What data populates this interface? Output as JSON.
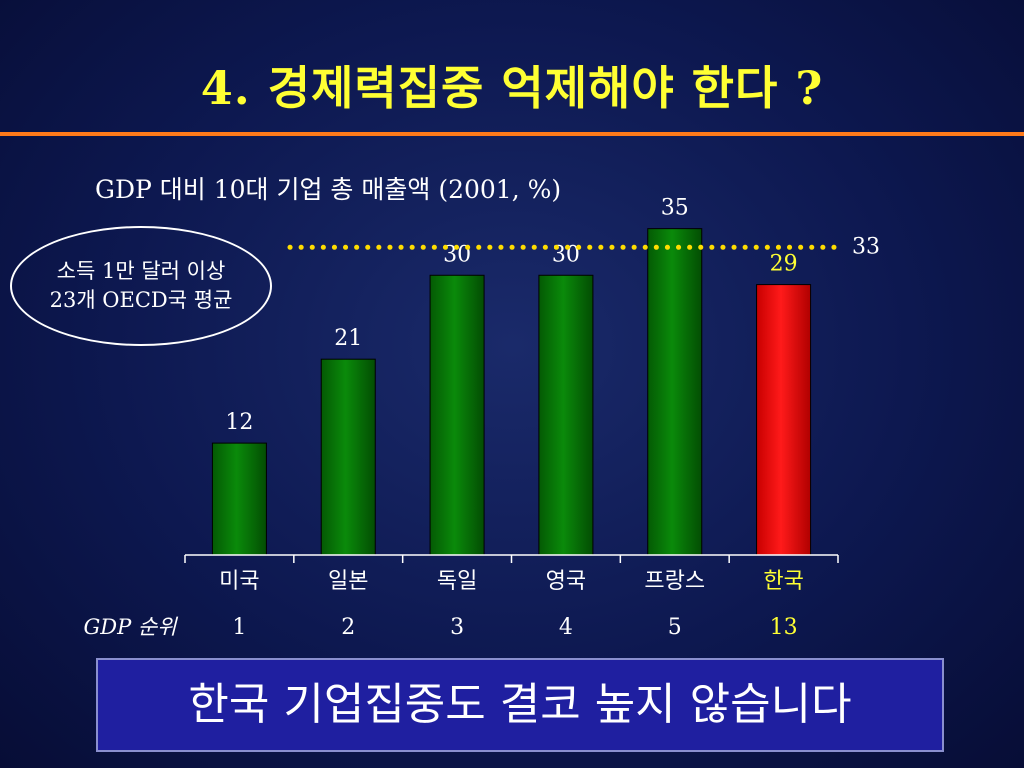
{
  "title": "4. 경제력집중 억제해야 한다 ?",
  "note_bubble": {
    "line1": "소득 1만 달러 이상",
    "line2": "23개 OECD국 평균"
  },
  "rank_label": "GDP 순위",
  "banner": "한국 기업집중도 결코 높지 않습니다",
  "colors": {
    "title": "#ffff33",
    "rule": "#ff7a1a",
    "bar_normal": "#0a8a0a",
    "bar_highlight": "#ff1a1a",
    "highlight_text": "#ffff33",
    "average_line": "#ffdd00"
  },
  "chart_data": {
    "type": "bar",
    "title": "GDP 대비 10대 기업 총 매출액 (2001, %)",
    "categories": [
      "미국",
      "일본",
      "독일",
      "영국",
      "프랑스",
      "한국"
    ],
    "values": [
      12,
      21,
      30,
      30,
      35,
      29
    ],
    "gdp_rank": [
      "1",
      "2",
      "3",
      "4",
      "5",
      "13"
    ],
    "highlight_index": 5,
    "average": {
      "value": 33,
      "label": "33"
    },
    "ylim": [
      0,
      37
    ]
  }
}
